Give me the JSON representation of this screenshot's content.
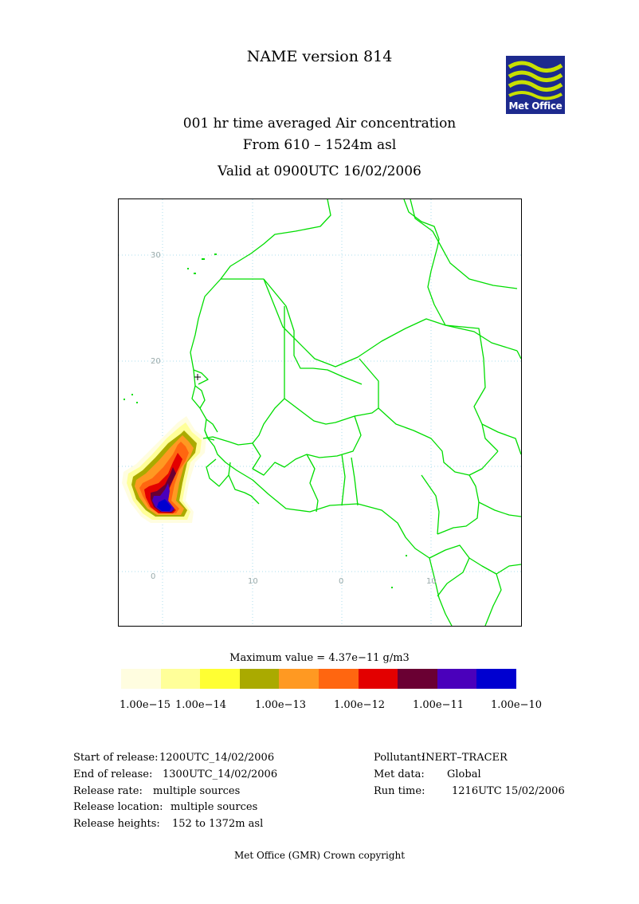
{
  "header": {
    "title": "NAME version 814",
    "line1": "001 hr time averaged   Air concentration",
    "line2": "From    610 –   1524m asl",
    "line3": "Valid at 0900UTC 16/02/2006"
  },
  "logo": {
    "text": "Met Office",
    "bg_color": "#1d2a8e",
    "wave_color": "#c8e000"
  },
  "map": {
    "border_color": "#00dd00",
    "grid_color": "#aaddee",
    "latitude_labels": [
      "30",
      "20",
      "0"
    ],
    "longitude_labels": [
      "10",
      "0",
      "10"
    ],
    "plume_levels": [
      "#fffde0",
      "#ffff99",
      "#ffff33",
      "#aaaa00",
      "#ff9922",
      "#ff6610",
      "#e30000",
      "#6a0033",
      "#4a00bb",
      "#0000d0"
    ]
  },
  "legend": {
    "max_value": "Maximum value = 4.37e−11 g/m3",
    "colors": [
      "#fffde0",
      "#ffff99",
      "#ffff33",
      "#aaaa00",
      "#ff9922",
      "#ff6610",
      "#e30000",
      "#6a0033",
      "#4a00bb",
      "#0000d0"
    ],
    "labels": [
      "1.00e−15",
      "1.00e−14",
      "1.00e−13",
      "1.00e−12",
      "1.00e−11",
      "1.00e−10"
    ]
  },
  "info": {
    "start_label": "Start of release:",
    "start_value": "1200UTC_14/02/2006",
    "end_label": "End of release:",
    "end_value": "1300UTC_14/02/2006",
    "rate_label": "Release rate:",
    "rate_value": "multiple sources",
    "location_label": "Release location:",
    "location_value": "multiple sources",
    "heights_label": "Release heights:",
    "heights_value": "152 to   1372m asl",
    "pollutant_label": "Pollutant:",
    "pollutant_value": "INERT–TRACER",
    "met_label": "Met data:",
    "met_value": "Global",
    "run_label": "Run time:",
    "run_value": "1216UTC 15/02/2006"
  },
  "footer": "Met Office (GMR)  Crown copyright"
}
